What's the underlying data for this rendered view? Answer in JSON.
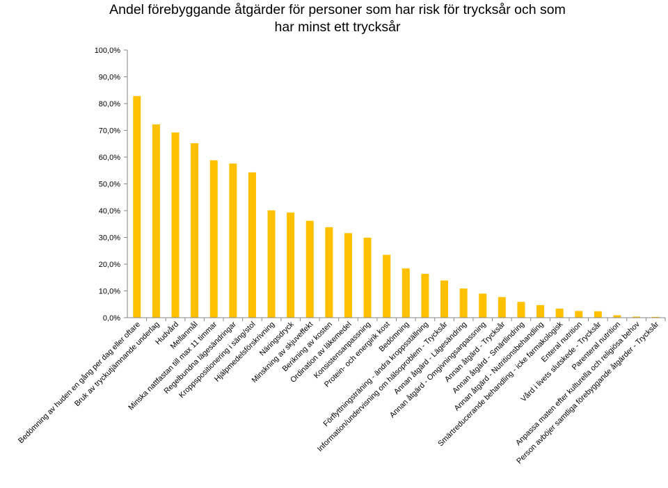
{
  "chart_data": {
    "type": "bar",
    "title_line1": "Andel förebyggande åtgärder för personer som har risk för trycksår och som",
    "title_line2": "har minst ett trycksår",
    "ylim": [
      0,
      100
    ],
    "y_tick_labels": [
      "0,0%",
      "10,0%",
      "20,0%",
      "30,0%",
      "40,0%",
      "50,0%",
      "60,0%",
      "70,0%",
      "80,0%",
      "90,0%",
      "100,0%"
    ],
    "grid": false,
    "legend": "none",
    "colors": {
      "bar": "#FFC000",
      "axis": "#868686"
    },
    "categories": [
      "Bedömning av huden en gång per dag eller oftare",
      "Bruk av tryckutjämnande underlag",
      "Hudvård",
      "Mellanmål",
      "Minska nattfastan till max 11 timmar",
      "Regelbundna lägesändringar",
      "Kroppspositionering i säng/stol",
      "Hjälpmedelsförskrivning",
      "Näringsdryck",
      "Minskning av skjuveffekt",
      "Berikning av kosten",
      "Ordination av läkemedel",
      "Konsistensanpassning",
      "Protein- och energirik kost",
      "Bedömning",
      "Förflyttningsträning - ändra kroppsställning",
      "Information/undervisning om hälsoproblem - Trycksår",
      "Annan åtgärd - Lägesändring",
      "Annan åtgärd - Omgivningsanpassning",
      "Annan åtgärd - Trycksår",
      "Annan åtgärd - Smärtlindring",
      "Annan åtgärd - Nutritionsbehandling",
      "Smärtreducerande behandling - icke farmakologisk",
      "Enteral nutrition",
      "Vård i livets slutskede - Trycksår",
      "Parenteral nutrition",
      "Anpassa maten efter kulturella och religiösa behov",
      "Person avböjer samtliga förebyggande åtgärder - Trycksår"
    ],
    "values": [
      82.8,
      72.2,
      69.2,
      65.2,
      58.8,
      57.6,
      54.3,
      40.1,
      39.3,
      36.2,
      33.8,
      31.6,
      29.9,
      23.5,
      18.4,
      16.4,
      13.9,
      10.9,
      9.0,
      7.7,
      5.9,
      4.7,
      3.4,
      2.5,
      2.4,
      0.9,
      0.4,
      0.3
    ]
  }
}
